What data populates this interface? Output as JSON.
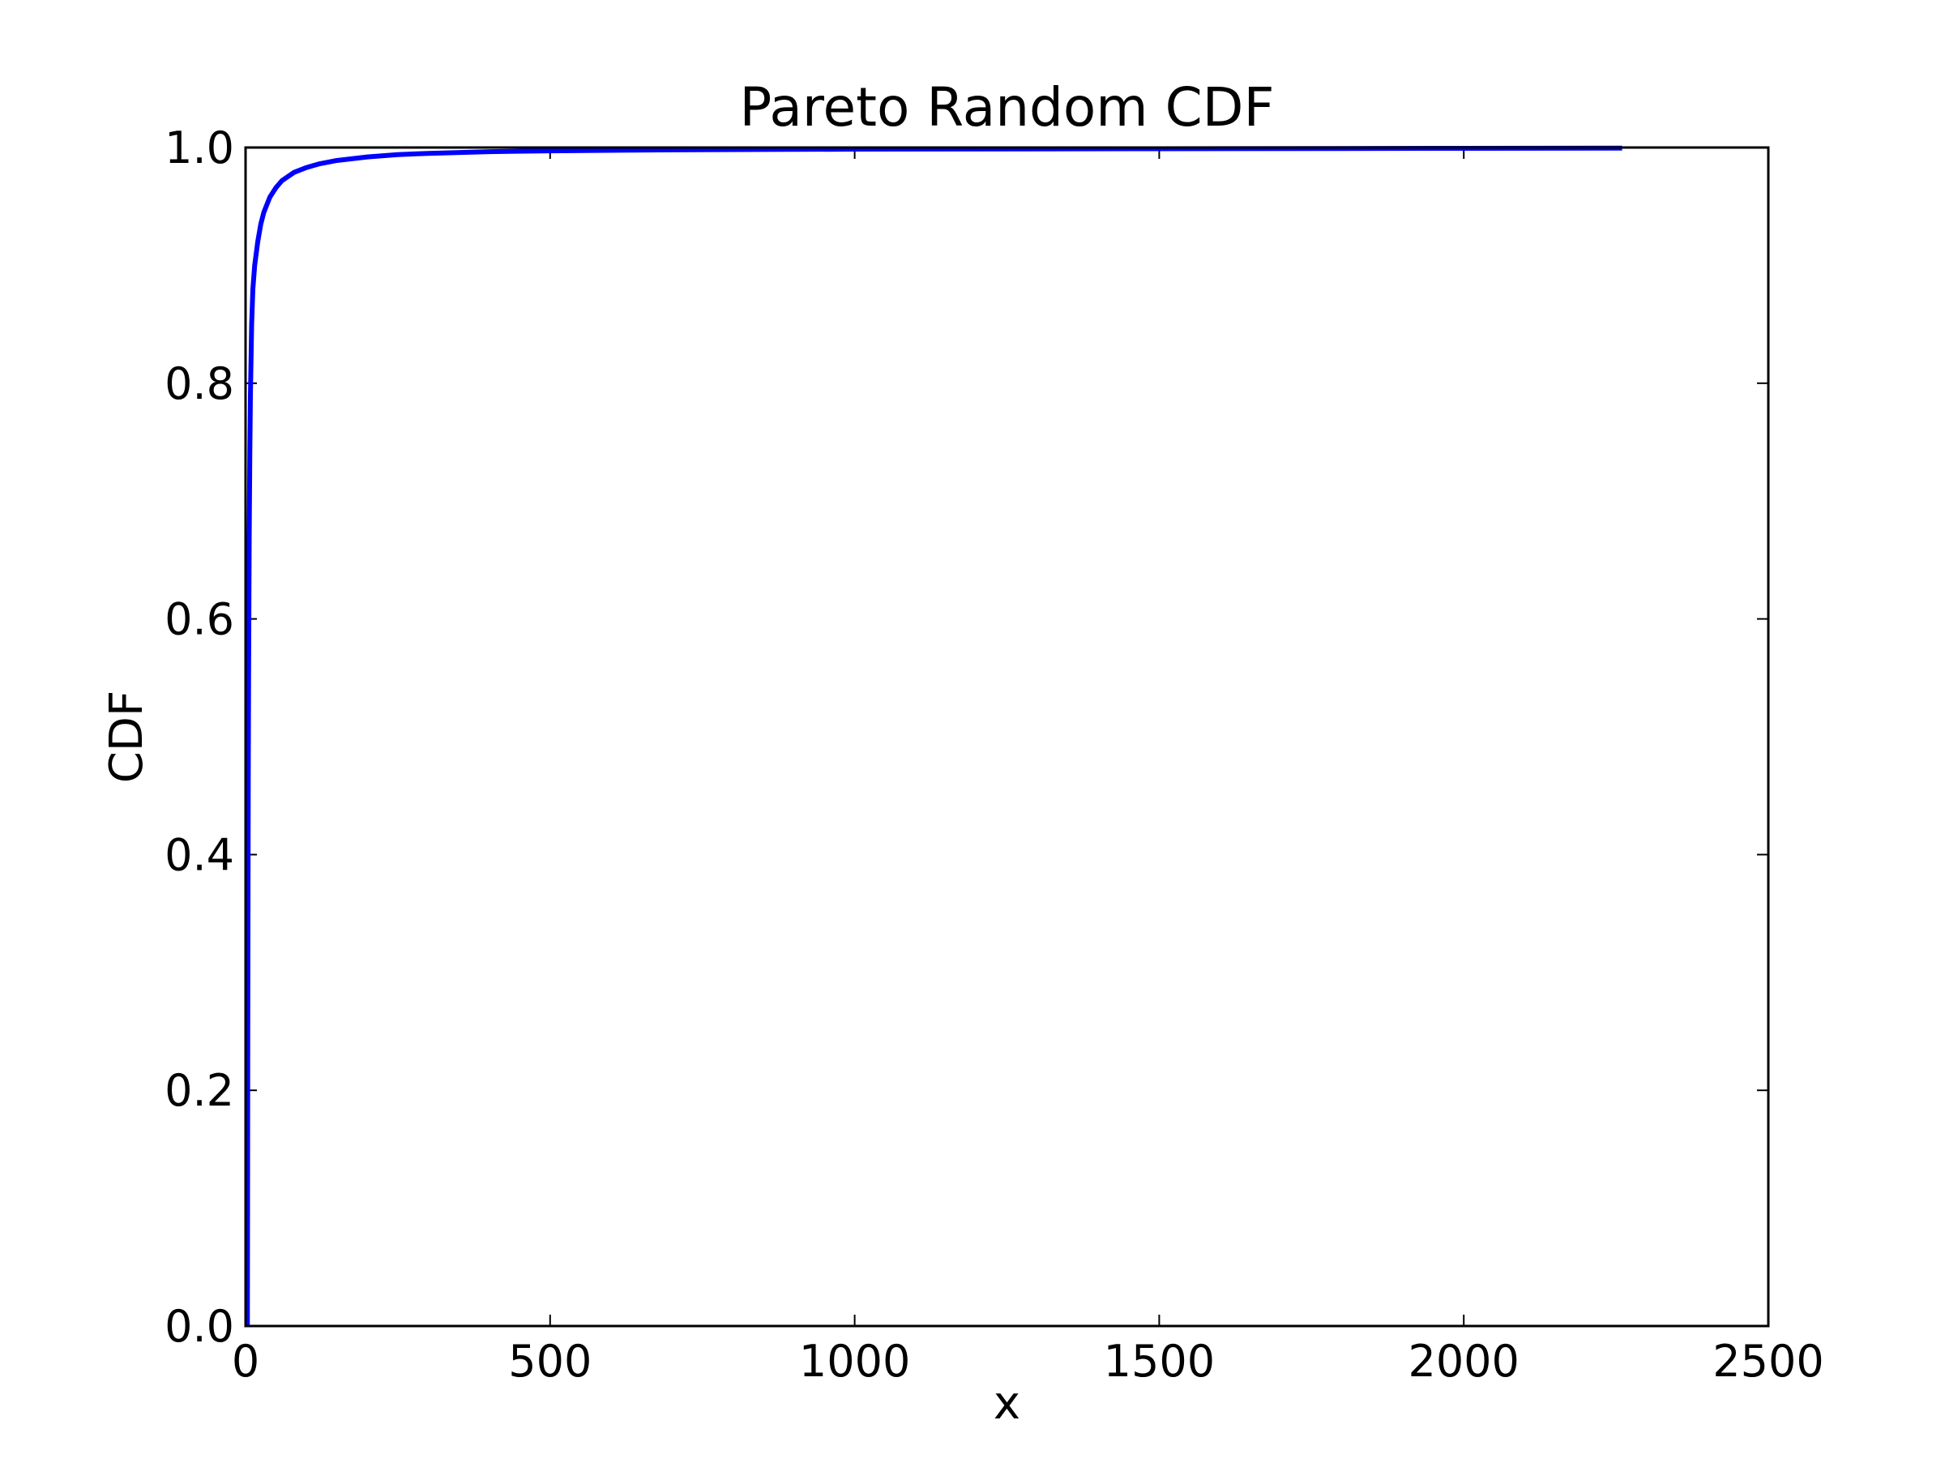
{
  "chart_data": {
    "type": "line",
    "title": "Pareto Random CDF",
    "xlabel": "x",
    "ylabel": "CDF",
    "xlim": [
      0,
      2500
    ],
    "ylim": [
      0,
      1.0
    ],
    "xticks": [
      "0",
      "500",
      "1000",
      "1500",
      "2000",
      "2500"
    ],
    "yticks": [
      "0.0",
      "0.2",
      "0.4",
      "0.6",
      "0.8",
      "1.0"
    ],
    "grid": false,
    "series": [
      {
        "color": "#0000ff",
        "x": [
          3,
          3.3,
          3.6,
          4,
          4.5,
          5,
          6,
          7,
          8,
          10,
          12,
          15,
          20,
          25,
          30,
          40,
          50,
          60,
          80,
          100,
          120,
          150,
          200,
          250,
          300,
          400,
          500,
          700,
          1000,
          1500,
          2000,
          2260
        ],
        "y": [
          0.0,
          0.1,
          0.23,
          0.35,
          0.47,
          0.55,
          0.67,
          0.74,
          0.79,
          0.85,
          0.88,
          0.9,
          0.92,
          0.935,
          0.945,
          0.958,
          0.966,
          0.972,
          0.979,
          0.983,
          0.986,
          0.989,
          0.992,
          0.994,
          0.995,
          0.9965,
          0.9972,
          0.998,
          0.9986,
          0.999,
          0.9993,
          0.9995
        ]
      }
    ]
  }
}
